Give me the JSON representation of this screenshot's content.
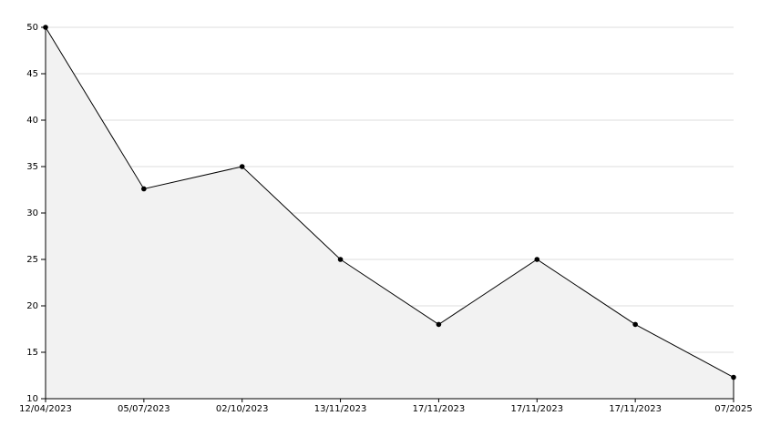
{
  "chart_data": {
    "type": "area",
    "categories": [
      "12/04/2023",
      "05/07/2023",
      "02/10/2023",
      "13/11/2023",
      "17/11/2023",
      "17/11/2023",
      "17/11/2023",
      "07/2025"
    ],
    "values": [
      50,
      32.6,
      35,
      25,
      18,
      25,
      18,
      12.3
    ],
    "color": "#000000",
    "fill": "#f2f2f2",
    "ylim": [
      10,
      50
    ],
    "yticks": [
      10,
      15,
      20,
      25,
      30,
      35,
      40,
      45,
      50
    ],
    "grid": true
  }
}
